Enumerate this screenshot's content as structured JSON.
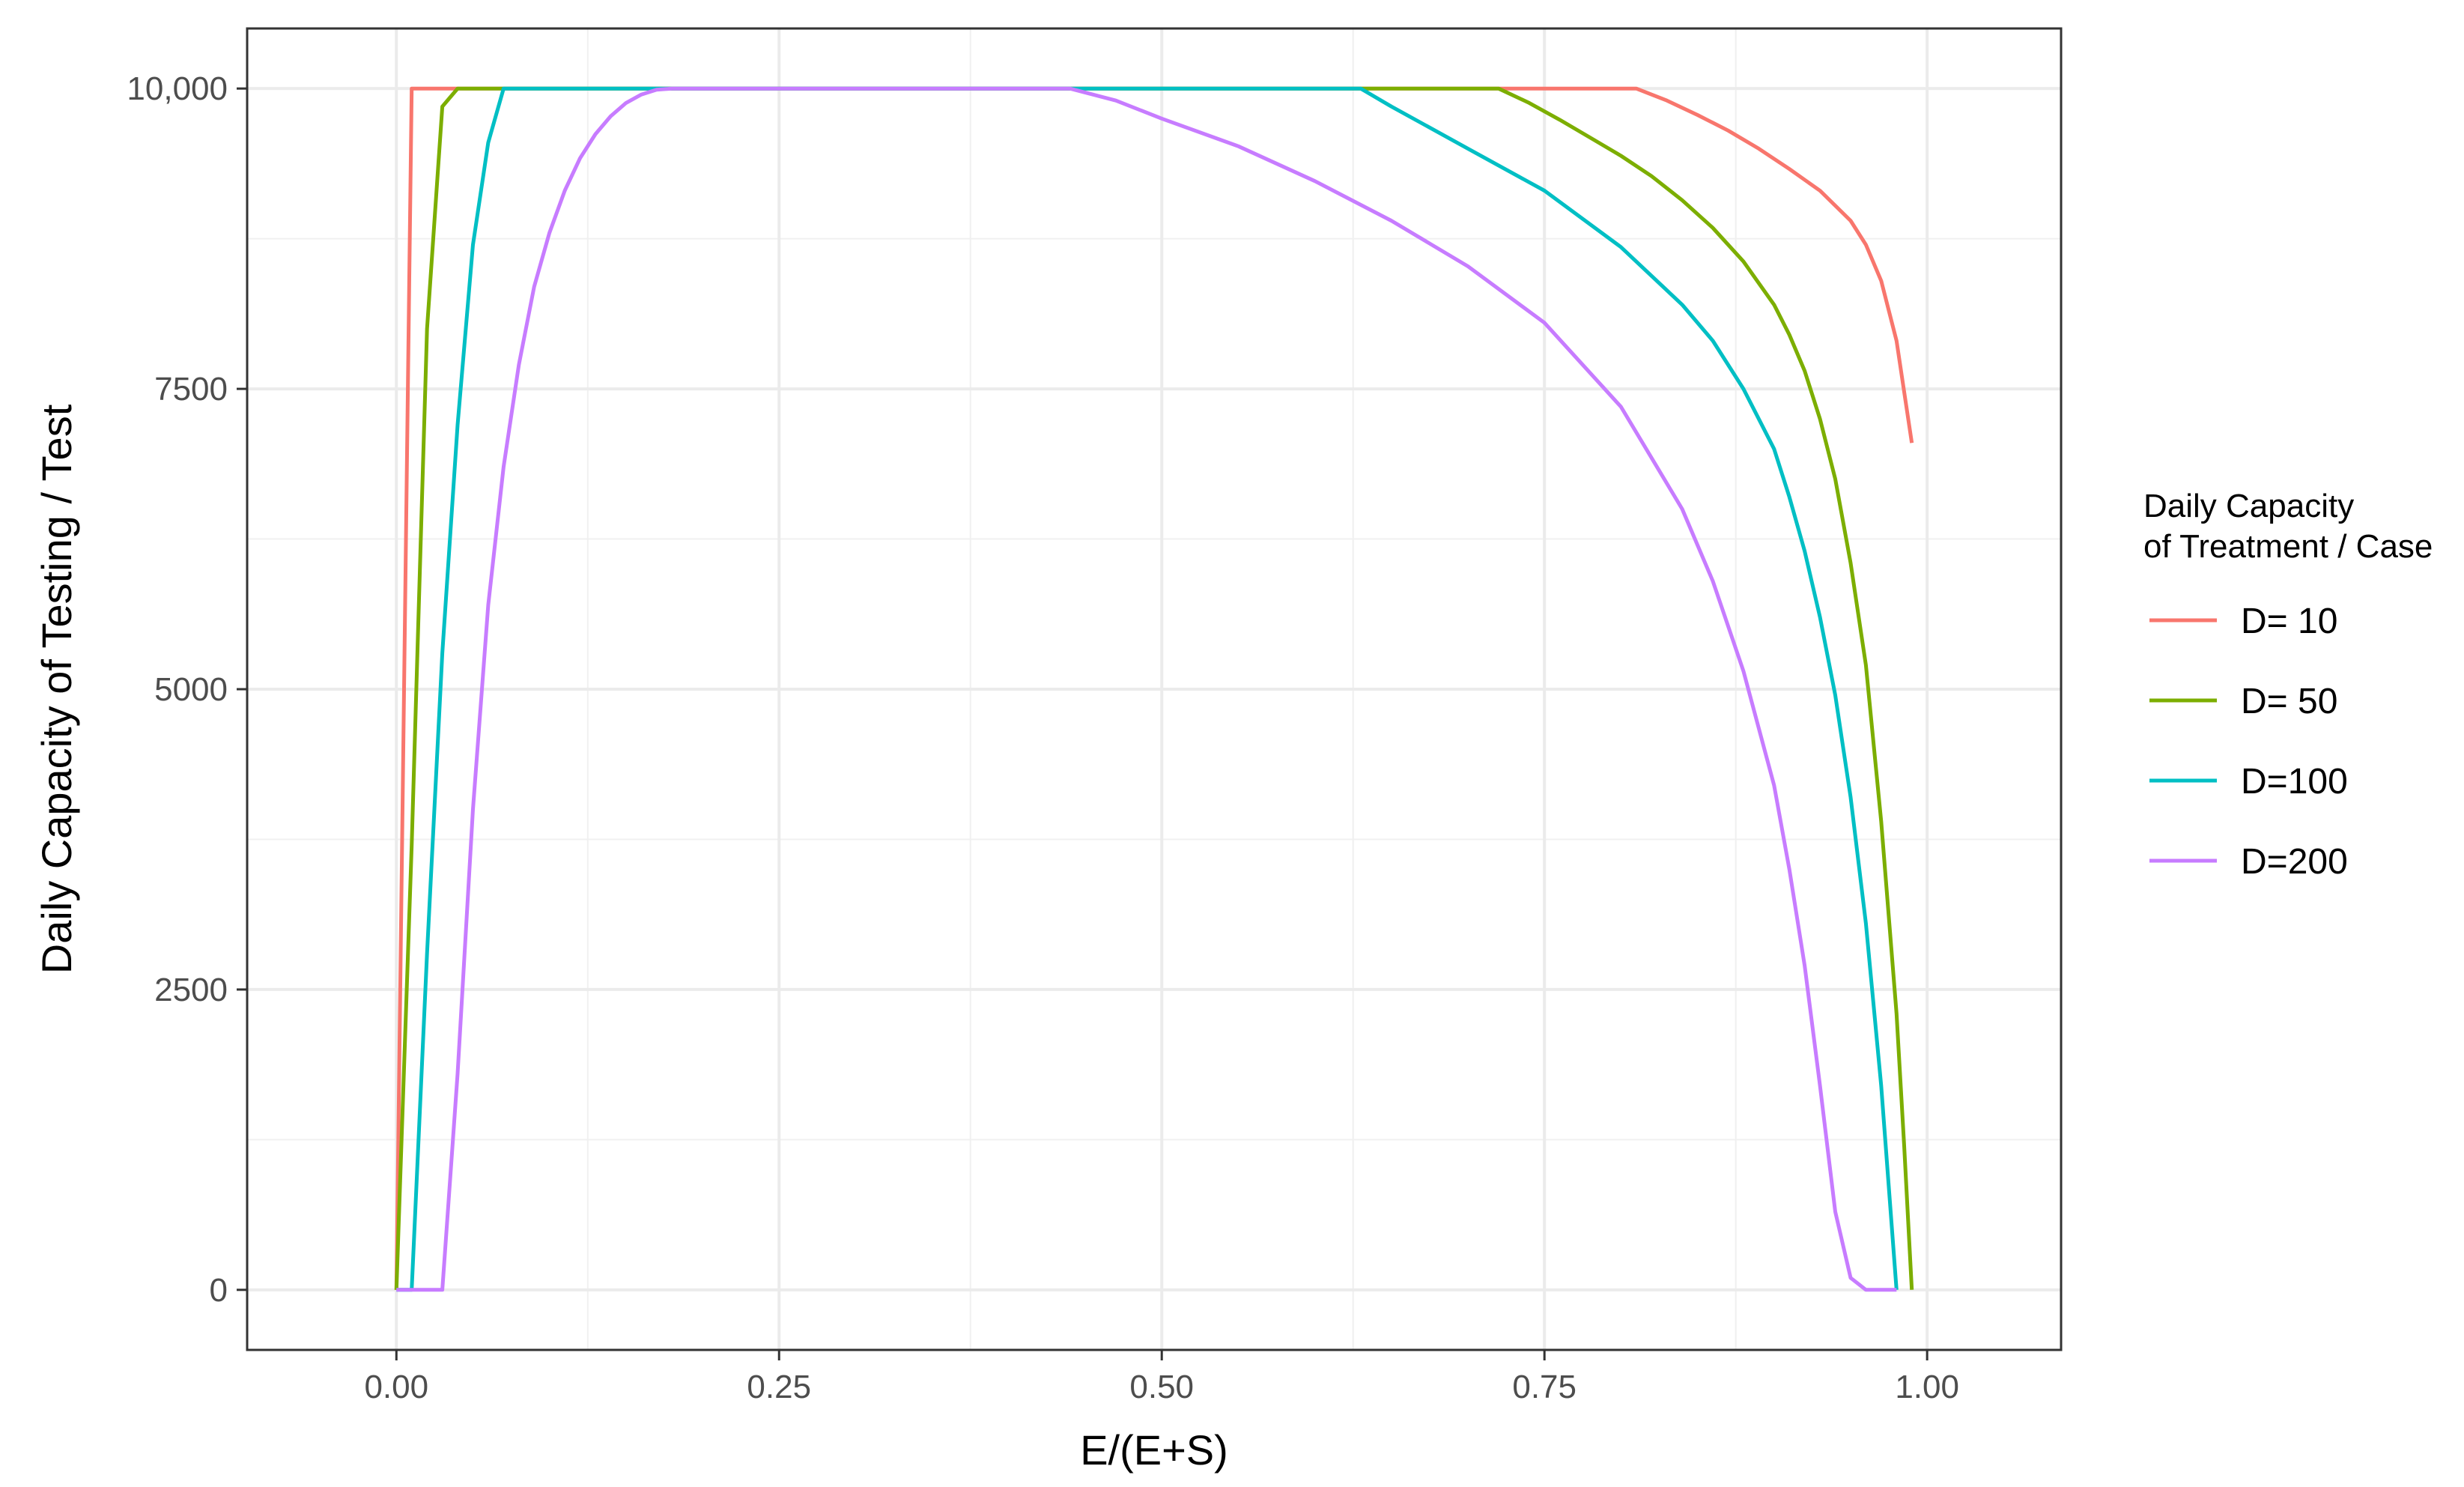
{
  "chart_data": {
    "type": "line",
    "title": "",
    "xlabel": "E/(E+S)",
    "ylabel": "Daily Capacity of Testing / Test",
    "xlim": [
      -0.0975,
      1.0875
    ],
    "ylim": [
      -500,
      10500
    ],
    "x_ticks": [
      0.0,
      0.25,
      0.5,
      0.75,
      1.0
    ],
    "x_tick_labels": [
      "0.00",
      "0.25",
      "0.50",
      "0.75",
      "1.00"
    ],
    "y_ticks": [
      0,
      2500,
      5000,
      7500,
      10000
    ],
    "y_tick_labels": [
      "0",
      "2500",
      "5000",
      "7500",
      "10,000"
    ],
    "grid": true,
    "legend": {
      "title_lines": [
        "Daily Capacity",
        "of Treatment / Case"
      ],
      "placement": "right"
    },
    "series": [
      {
        "name": "D= 10",
        "color": "#F8766D",
        "x": [
          0.0,
          0.005,
          0.01,
          0.05,
          0.2,
          0.5,
          0.7,
          0.81,
          0.83,
          0.85,
          0.87,
          0.89,
          0.91,
          0.93,
          0.95,
          0.96,
          0.97,
          0.98,
          0.99
        ],
        "y": [
          0,
          5000,
          10000,
          10000,
          10000,
          10000,
          10000,
          10000,
          9900,
          9780,
          9650,
          9500,
          9330,
          9150,
          8900,
          8700,
          8400,
          7900,
          7050
        ]
      },
      {
        "name": "D= 50",
        "color": "#7CAE00",
        "x": [
          0.0,
          0.01,
          0.02,
          0.03,
          0.04,
          0.05,
          0.2,
          0.5,
          0.72,
          0.74,
          0.76,
          0.78,
          0.8,
          0.82,
          0.84,
          0.86,
          0.88,
          0.9,
          0.91,
          0.92,
          0.93,
          0.94,
          0.95,
          0.96,
          0.97,
          0.98,
          0.985,
          0.99
        ],
        "y": [
          0,
          3700,
          8000,
          9850,
          10000,
          10000,
          10000,
          10000,
          10000,
          9880,
          9740,
          9590,
          9440,
          9270,
          9070,
          8840,
          8560,
          8200,
          7950,
          7650,
          7250,
          6750,
          6050,
          5200,
          3900,
          2300,
          1200,
          0
        ]
      },
      {
        "name": "D=100",
        "color": "#00BFC4",
        "x": [
          0.0,
          0.01,
          0.02,
          0.03,
          0.04,
          0.05,
          0.06,
          0.07,
          0.1,
          0.5,
          0.63,
          0.65,
          0.7,
          0.75,
          0.8,
          0.84,
          0.86,
          0.88,
          0.9,
          0.91,
          0.92,
          0.93,
          0.94,
          0.95,
          0.96,
          0.97,
          0.98
        ],
        "y": [
          0,
          0,
          2800,
          5300,
          7200,
          8700,
          9550,
          10000,
          10000,
          10000,
          10000,
          9850,
          9500,
          9150,
          8680,
          8200,
          7900,
          7500,
          7000,
          6600,
          6150,
          5600,
          4950,
          4100,
          3050,
          1700,
          0
        ]
      },
      {
        "name": "D=200",
        "color": "#C77CFF",
        "x": [
          0.0,
          0.01,
          0.02,
          0.03,
          0.04,
          0.05,
          0.06,
          0.07,
          0.08,
          0.09,
          0.1,
          0.11,
          0.12,
          0.13,
          0.14,
          0.15,
          0.16,
          0.17,
          0.18,
          0.2,
          0.3,
          0.44,
          0.47,
          0.5,
          0.55,
          0.6,
          0.65,
          0.7,
          0.75,
          0.8,
          0.84,
          0.86,
          0.88,
          0.9,
          0.91,
          0.92,
          0.93,
          0.94,
          0.95,
          0.96,
          0.97,
          0.98
        ],
        "y": [
          0,
          0,
          0,
          0,
          1800,
          4000,
          5700,
          6850,
          7700,
          8350,
          8800,
          9150,
          9420,
          9620,
          9770,
          9880,
          9950,
          9990,
          10000,
          10000,
          10000,
          10000,
          9900,
          9750,
          9520,
          9230,
          8900,
          8520,
          8050,
          7350,
          6500,
          5900,
          5150,
          4200,
          3500,
          2700,
          1700,
          650,
          100,
          0,
          0,
          0
        ]
      }
    ]
  }
}
